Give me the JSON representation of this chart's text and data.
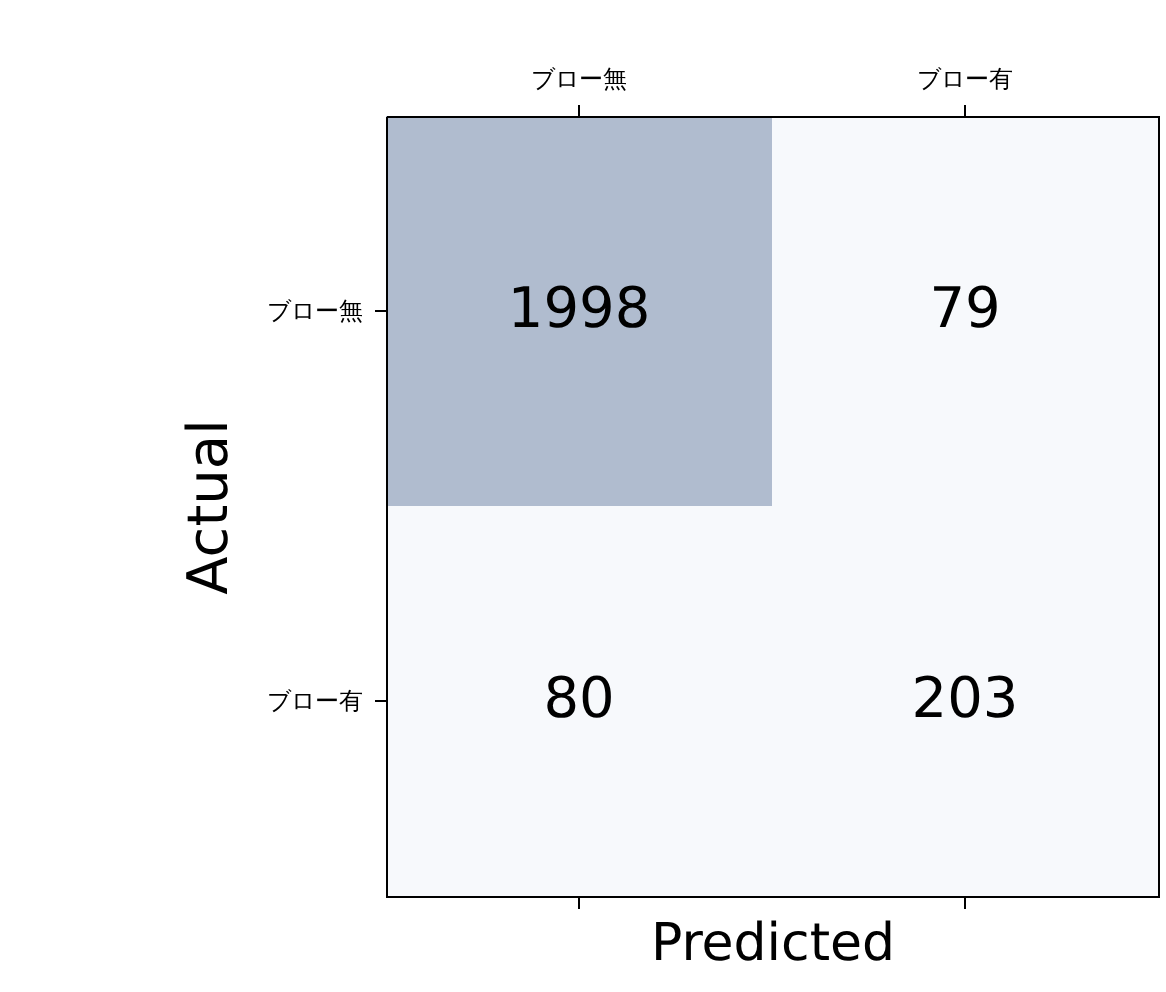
{
  "chart_data": {
    "type": "heatmap",
    "xlabel": "Predicted",
    "ylabel": "Actual",
    "categories": [
      "ブロー無",
      "ブロー有"
    ],
    "y_categories": [
      "ブロー無",
      "ブロー有"
    ],
    "cells": [
      [
        1998,
        79
      ],
      [
        80,
        203
      ]
    ],
    "colors": [
      [
        "#b0bccf",
        "#f7f9fc"
      ],
      [
        "#f7f9fc",
        "#f7f9fc"
      ]
    ],
    "data_labels": true,
    "grid": false
  }
}
